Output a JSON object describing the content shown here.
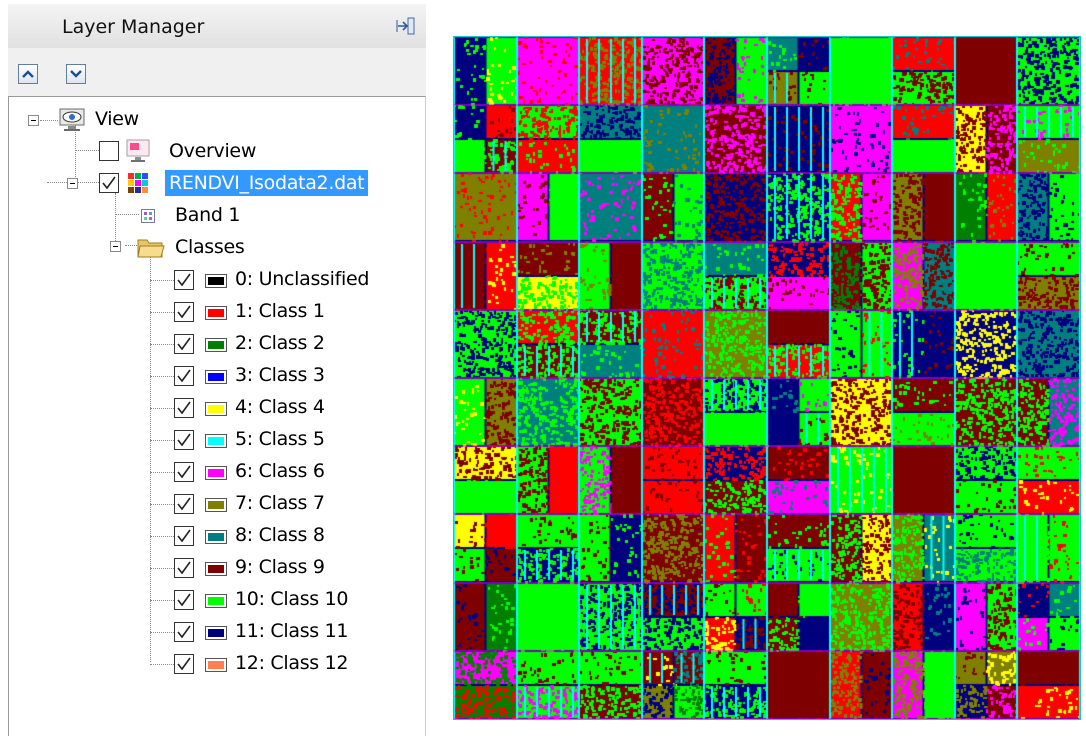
{
  "panel": {
    "title": "Layer Manager",
    "dock_icon": "dock-right-icon",
    "toolbar": {
      "move_up_icon": "arrow-up-icon",
      "move_down_icon": "arrow-down-icon"
    }
  },
  "tree": {
    "view_label": "View",
    "overview_label": "Overview",
    "dataset_label": "RENDVI_Isodata2.dat",
    "band_label": "Band 1",
    "classes_label": "Classes",
    "classes": [
      {
        "label": "0: Unclassified",
        "color": "#000000"
      },
      {
        "label": "1: Class 1",
        "color": "#ff0000"
      },
      {
        "label": "2: Class 2",
        "color": "#007f00"
      },
      {
        "label": "3: Class 3",
        "color": "#0000ff"
      },
      {
        "label": "4: Class 4",
        "color": "#ffff00"
      },
      {
        "label": "5: Class 5",
        "color": "#00ffff"
      },
      {
        "label": "6: Class 6",
        "color": "#ff00ff"
      },
      {
        "label": "7: Class 7",
        "color": "#7f7f00"
      },
      {
        "label": "8: Class 8",
        "color": "#007f7f"
      },
      {
        "label": "9: Class 9",
        "color": "#7f0000"
      },
      {
        "label": "10: Class 10",
        "color": "#00ff00"
      },
      {
        "label": "11: Class 11",
        "color": "#00007f"
      },
      {
        "label": "12: Class 12",
        "color": "#ff7f50"
      }
    ]
  },
  "image_view": {
    "border_color": "#18c7c7"
  }
}
